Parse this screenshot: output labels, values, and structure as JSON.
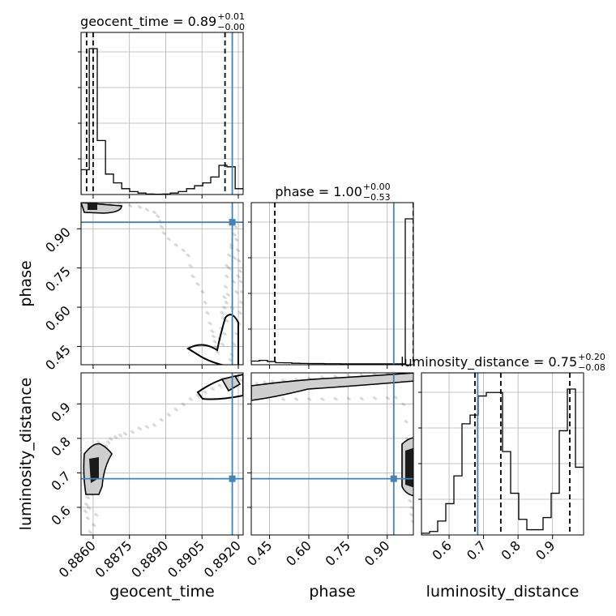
{
  "chart_data": {
    "type": "corner",
    "parameters": [
      "geocent_time",
      "phase",
      "luminosity_distance"
    ],
    "xlabels": [
      "geocent_time",
      "phase",
      "luminosity_distance"
    ],
    "ylabels": [
      "phase",
      "luminosity_distance"
    ],
    "titles": [
      {
        "param": "geocent_time",
        "text": "geocent_time = 0.89",
        "upper": "+0.01",
        "lower": "−0.00"
      },
      {
        "param": "phase",
        "text": "phase = 1.00",
        "upper": "+0.00",
        "lower": "−0.53"
      },
      {
        "param": "luminosity_distance",
        "text": "luminosity_distance = 0.75",
        "upper": "+0.20",
        "lower": "−0.08"
      }
    ],
    "ranges": {
      "geocent_time": [
        0.8855,
        0.8922
      ],
      "phase": [
        0.38,
        1.0
      ],
      "luminosity_distance": [
        0.52,
        0.99
      ]
    },
    "ticks": {
      "geocent_time": {
        "values": [
          0.886,
          0.8875,
          0.889,
          0.8905,
          0.892
        ],
        "labels": [
          "0.8860",
          "0.8875",
          "0.8890",
          "0.8905",
          "0.8920"
        ]
      },
      "phase": {
        "values": [
          0.45,
          0.6,
          0.75,
          0.9
        ],
        "labels": [
          "0.45",
          "0.60",
          "0.75",
          "0.90"
        ]
      },
      "luminosity_distance": {
        "values": [
          0.6,
          0.7,
          0.8,
          0.9
        ],
        "labels": [
          "0.6",
          "0.7",
          "0.8",
          "0.9"
        ]
      }
    },
    "truths": {
      "geocent_time": 0.89175,
      "phase": 0.925,
      "luminosity_distance": 0.683
    },
    "quantiles": {
      "geocent_time": [
        0.88573,
        0.886,
        0.89145
      ],
      "phase": [
        0.47,
        1.0,
        1.0
      ],
      "luminosity_distance": [
        0.675,
        0.75,
        0.95
      ]
    },
    "histograms": {
      "geocent_time": {
        "edges": [
          0.8855,
          0.88584,
          0.88617,
          0.88651,
          0.88684,
          0.88718,
          0.88751,
          0.88785,
          0.88818,
          0.88852,
          0.88885,
          0.88919,
          0.88952,
          0.88986,
          0.89019,
          0.89053,
          0.89086,
          0.8912,
          0.89153,
          0.89187,
          0.8922
        ],
        "counts": [
          0.17,
          1.0,
          0.37,
          0.14,
          0.08,
          0.04,
          0.02,
          0.01,
          0.003,
          0.002,
          0.003,
          0.01,
          0.02,
          0.04,
          0.06,
          0.08,
          0.12,
          0.2,
          0.19,
          0.04
        ]
      },
      "phase": {
        "edges": [
          0.38,
          0.411,
          0.442,
          0.473,
          0.504,
          0.535,
          0.566,
          0.597,
          0.628,
          0.659,
          0.69,
          0.721,
          0.752,
          0.783,
          0.814,
          0.845,
          0.876,
          0.907,
          0.938,
          0.969,
          1.0
        ],
        "counts": [
          0.025,
          0.03,
          0.022,
          0.014,
          0.013,
          0.01,
          0.009,
          0.008,
          0.008,
          0.007,
          0.007,
          0.006,
          0.006,
          0.006,
          0.006,
          0.006,
          0.006,
          0.006,
          0.006,
          1.0
        ]
      },
      "luminosity_distance": {
        "edges": [
          0.52,
          0.5435,
          0.567,
          0.5905,
          0.614,
          0.6375,
          0.661,
          0.6845,
          0.708,
          0.7315,
          0.755,
          0.7785,
          0.802,
          0.8255,
          0.849,
          0.8725,
          0.896,
          0.9195,
          0.943,
          0.9665,
          0.99
        ],
        "counts": [
          0.01,
          0.02,
          0.08,
          0.18,
          0.34,
          0.64,
          0.69,
          0.8,
          0.82,
          0.82,
          0.48,
          0.24,
          0.09,
          0.03,
          0.03,
          0.1,
          0.24,
          0.6,
          0.84,
          0.39
        ]
      }
    },
    "samples": {
      "geocent_time_phase": [
        [
          0.88565,
          0.995
        ],
        [
          0.88585,
          0.997
        ],
        [
          0.8861,
          0.993
        ],
        [
          0.8864,
          0.996
        ],
        [
          0.8867,
          0.994
        ],
        [
          0.8871,
          0.992
        ],
        [
          0.8875,
          0.99
        ],
        [
          0.8879,
          0.985
        ],
        [
          0.8882,
          0.975
        ],
        [
          0.8885,
          0.965
        ],
        [
          0.88865,
          0.95
        ],
        [
          0.88875,
          0.93
        ],
        [
          0.8888,
          0.91
        ],
        [
          0.8889,
          0.885
        ],
        [
          0.8891,
          0.862
        ],
        [
          0.8894,
          0.84
        ],
        [
          0.8897,
          0.82
        ],
        [
          0.8899,
          0.8
        ],
        [
          0.89,
          0.76
        ],
        [
          0.8901,
          0.72
        ],
        [
          0.8903,
          0.69
        ],
        [
          0.8905,
          0.66
        ],
        [
          0.8906,
          0.62
        ],
        [
          0.8907,
          0.58
        ],
        [
          0.8908,
          0.54
        ],
        [
          0.8909,
          0.51
        ],
        [
          0.89095,
          0.49
        ],
        [
          0.891,
          0.47
        ],
        [
          0.89105,
          0.45
        ],
        [
          0.89112,
          0.43
        ],
        [
          0.8912,
          0.48
        ],
        [
          0.89128,
          0.52
        ],
        [
          0.89135,
          0.56
        ],
        [
          0.8914,
          0.6
        ],
        [
          0.8914,
          0.64
        ],
        [
          0.89145,
          0.68
        ],
        [
          0.8915,
          0.72
        ],
        [
          0.8915,
          0.76
        ],
        [
          0.8916,
          0.8
        ],
        [
          0.8917,
          0.84
        ],
        [
          0.8918,
          0.88
        ],
        [
          0.89185,
          0.91
        ],
        [
          0.8919,
          0.86
        ],
        [
          0.89195,
          0.82
        ],
        [
          0.892,
          0.78
        ],
        [
          0.89205,
          0.74
        ],
        [
          0.89208,
          0.7
        ],
        [
          0.89212,
          0.66
        ],
        [
          0.8921,
          0.62
        ],
        [
          0.89205,
          0.58
        ],
        [
          0.892,
          0.54
        ],
        [
          0.8919,
          0.5
        ],
        [
          0.8918,
          0.46
        ],
        [
          0.8917,
          0.42
        ],
        [
          0.89165,
          0.4
        ],
        [
          0.8915,
          0.55
        ],
        [
          0.89155,
          0.65
        ],
        [
          0.8916,
          0.75
        ],
        [
          0.89168,
          0.83
        ],
        [
          0.89172,
          0.6
        ],
        [
          0.89178,
          0.7
        ],
        [
          0.89182,
          0.79
        ],
        [
          0.8919,
          0.66
        ],
        [
          0.89198,
          0.72
        ],
        [
          0.8914,
          0.5
        ],
        [
          0.89132,
          0.46
        ],
        [
          0.8913,
          0.58
        ],
        [
          0.89148,
          0.62
        ]
      ],
      "geocent_time_luminosity_distance": [
        [
          0.88565,
          0.59
        ],
        [
          0.8857,
          0.61
        ],
        [
          0.88575,
          0.63
        ],
        [
          0.8858,
          0.65
        ],
        [
          0.88585,
          0.67
        ],
        [
          0.8859,
          0.69
        ],
        [
          0.88595,
          0.71
        ],
        [
          0.886,
          0.73
        ],
        [
          0.8861,
          0.75
        ],
        [
          0.8862,
          0.76
        ],
        [
          0.8863,
          0.77
        ],
        [
          0.8865,
          0.78
        ],
        [
          0.8867,
          0.8
        ],
        [
          0.8869,
          0.805
        ],
        [
          0.8871,
          0.81
        ],
        [
          0.8873,
          0.815
        ],
        [
          0.8876,
          0.82
        ],
        [
          0.8879,
          0.83
        ],
        [
          0.8882,
          0.835
        ],
        [
          0.8885,
          0.84
        ],
        [
          0.8888,
          0.855
        ],
        [
          0.8891,
          0.87
        ],
        [
          0.8894,
          0.885
        ],
        [
          0.8897,
          0.9
        ],
        [
          0.89,
          0.915
        ],
        [
          0.8903,
          0.925
        ],
        [
          0.8906,
          0.935
        ],
        [
          0.8909,
          0.945
        ],
        [
          0.8912,
          0.955
        ],
        [
          0.8915,
          0.965
        ],
        [
          0.8917,
          0.975
        ],
        [
          0.8919,
          0.98
        ],
        [
          0.8921,
          0.97
        ],
        [
          0.88575,
          0.57
        ],
        [
          0.8858,
          0.6
        ],
        [
          0.8859,
          0.64
        ],
        [
          0.886,
          0.55
        ],
        [
          0.88585,
          0.53
        ],
        [
          0.8861,
          0.58
        ],
        [
          0.8862,
          0.79
        ],
        [
          0.8864,
          0.77
        ],
        [
          0.8866,
          0.79
        ]
      ],
      "phase_luminosity_distance": [
        [
          0.4,
          0.96
        ],
        [
          0.43,
          0.963
        ],
        [
          0.46,
          0.966
        ],
        [
          0.5,
          0.969
        ],
        [
          0.55,
          0.972
        ],
        [
          0.6,
          0.975
        ],
        [
          0.65,
          0.978
        ],
        [
          0.7,
          0.981
        ],
        [
          0.75,
          0.983
        ],
        [
          0.8,
          0.985
        ],
        [
          0.85,
          0.987
        ],
        [
          0.9,
          0.989
        ],
        [
          0.95,
          0.99
        ],
        [
          0.42,
          0.935
        ],
        [
          0.46,
          0.925
        ],
        [
          0.5,
          0.915
        ],
        [
          0.55,
          0.915
        ],
        [
          0.6,
          0.915
        ],
        [
          0.65,
          0.915
        ],
        [
          0.7,
          0.916
        ],
        [
          0.75,
          0.917
        ],
        [
          0.8,
          0.917
        ],
        [
          0.85,
          0.918
        ],
        [
          0.9,
          0.918
        ],
        [
          0.93,
          0.92
        ],
        [
          0.96,
          0.9
        ],
        [
          0.97,
          0.85
        ],
        [
          0.975,
          0.8
        ],
        [
          0.98,
          0.75
        ],
        [
          0.985,
          0.7
        ],
        [
          0.99,
          0.65
        ],
        [
          0.992,
          0.6
        ],
        [
          0.995,
          0.56
        ],
        [
          0.985,
          0.62
        ],
        [
          0.99,
          0.58
        ],
        [
          0.98,
          0.66
        ]
      ]
    },
    "grid": true
  }
}
